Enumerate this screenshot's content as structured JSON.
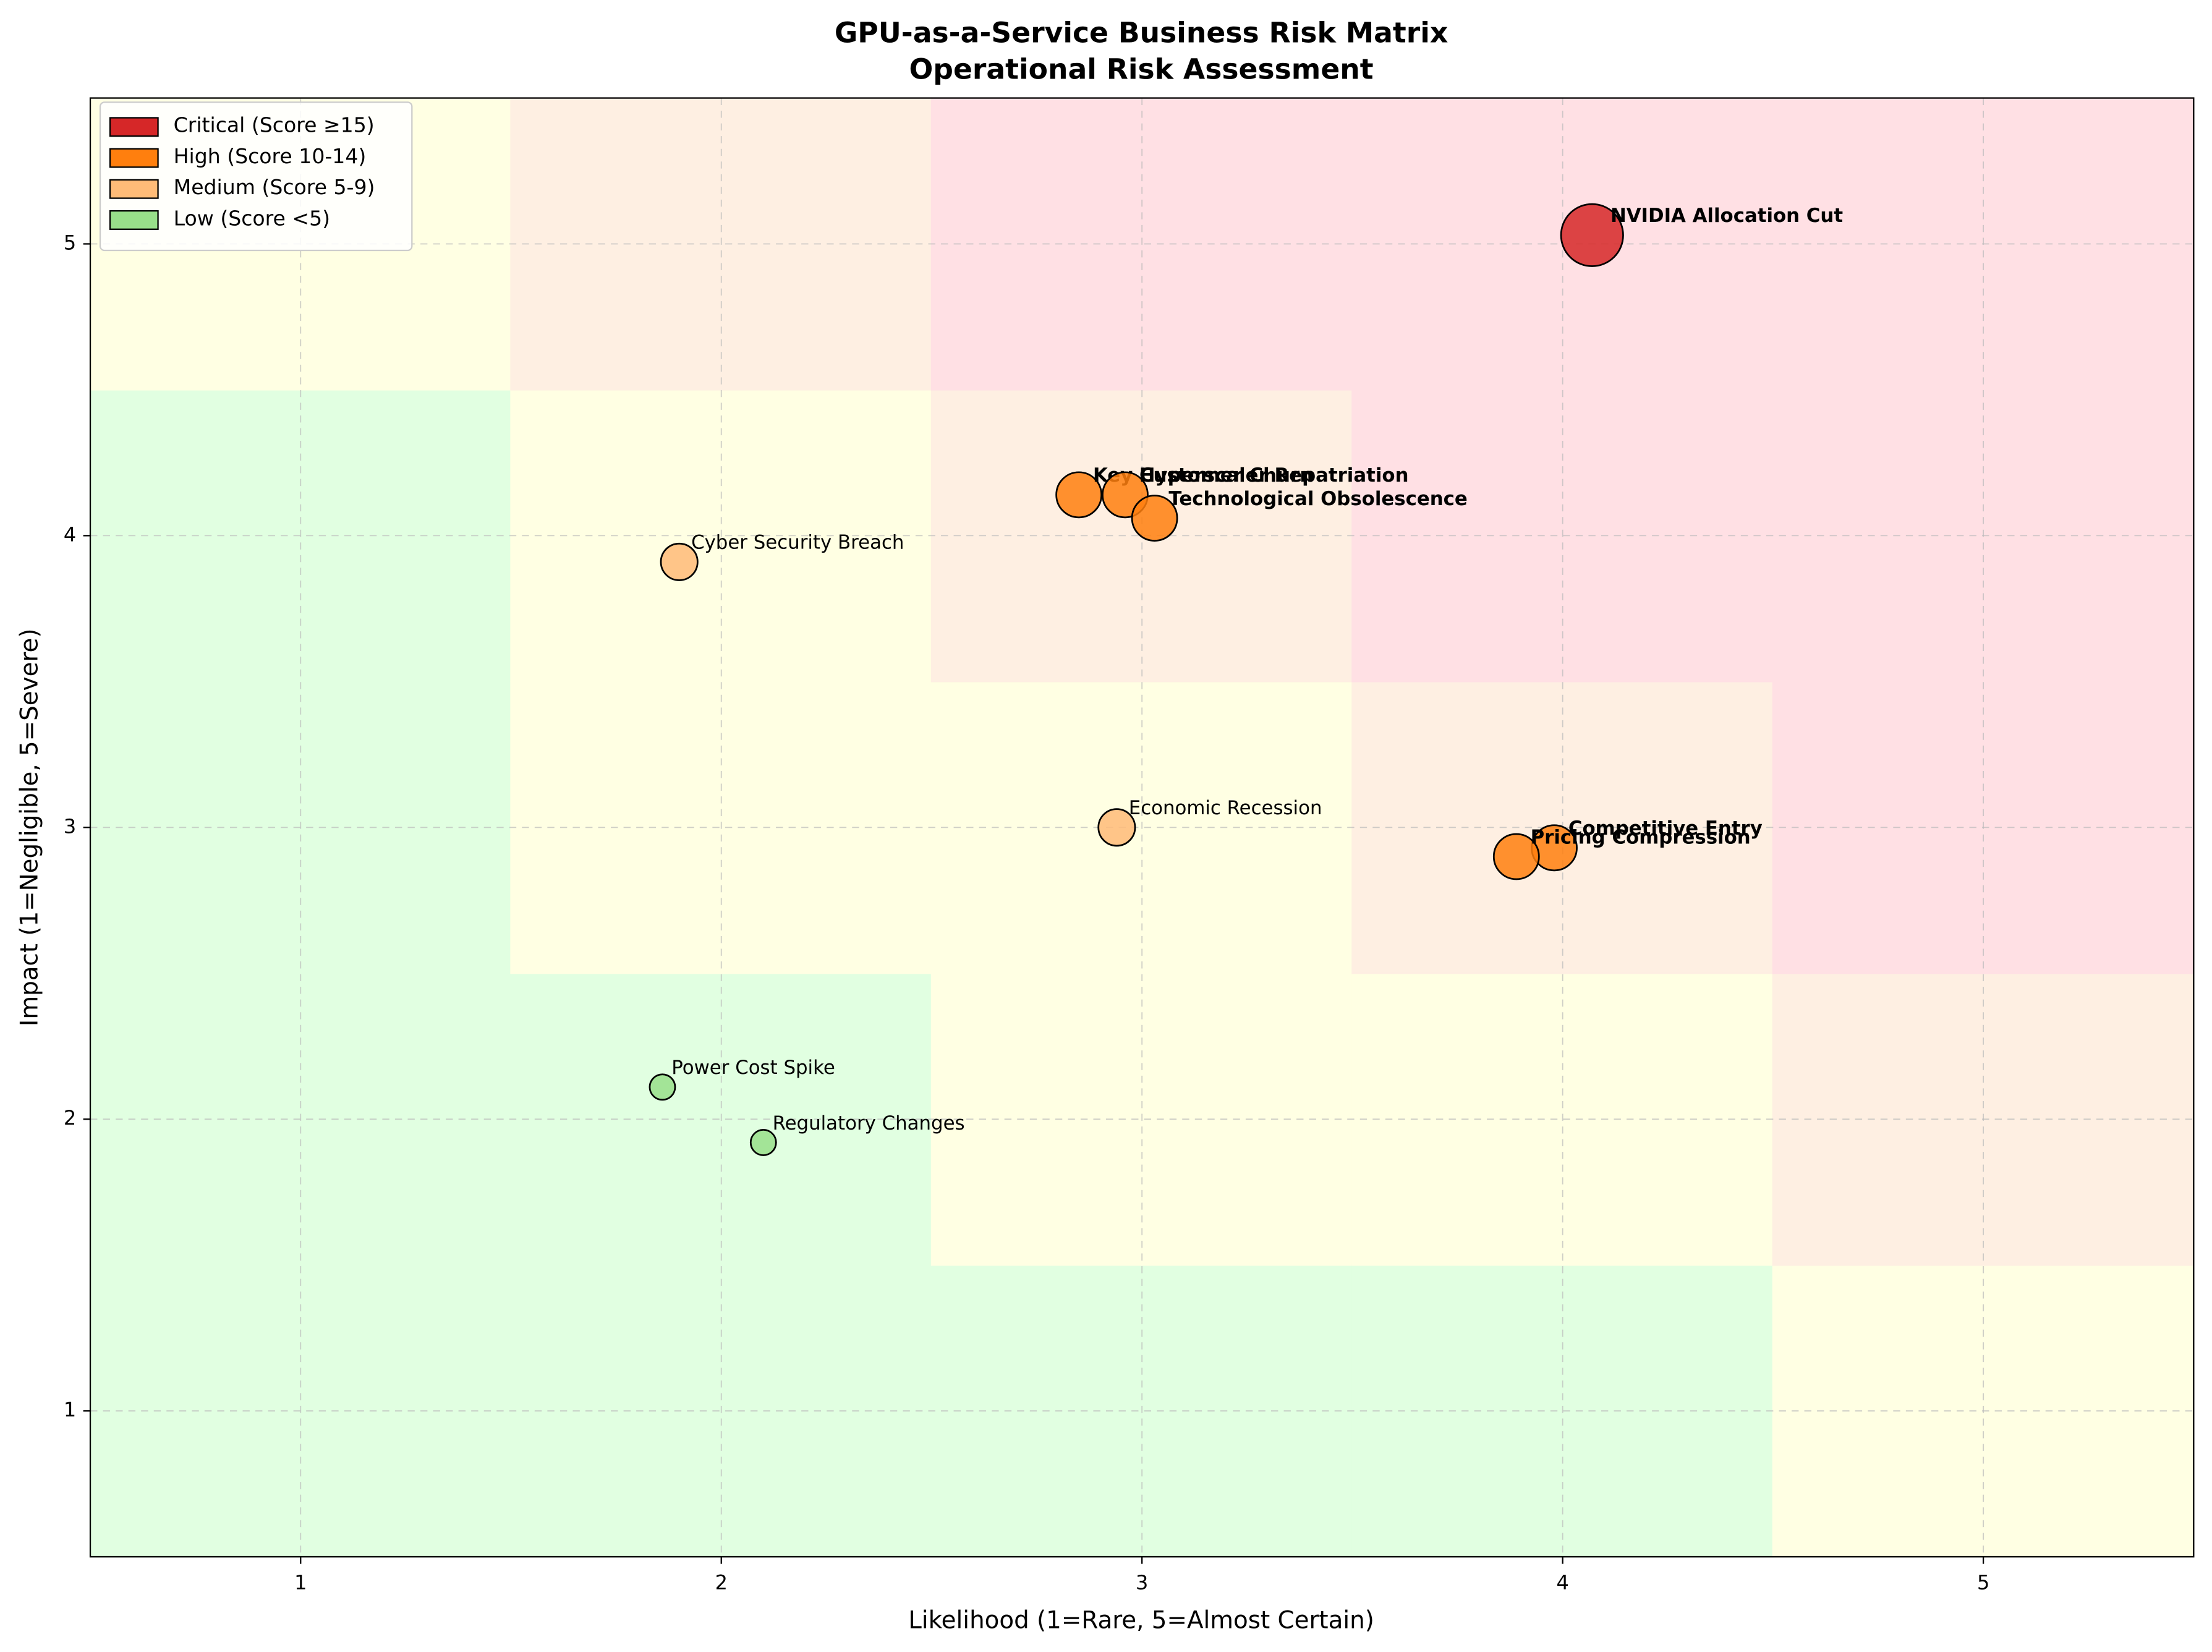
{
  "chart_data": {
    "type": "scatter",
    "title": "GPU-as-a-Service Business Risk Matrix",
    "subtitle": "Operational Risk Assessment",
    "xlabel": "Likelihood (1=Rare, 5=Almost Certain)",
    "ylabel": "Impact (1=Negligible, 5=Severe)",
    "xlim": [
      0.5,
      5.5
    ],
    "ylim": [
      0.5,
      5.5
    ],
    "xticks": [
      1,
      2,
      3,
      4,
      5
    ],
    "yticks": [
      1,
      2,
      3,
      4,
      5
    ],
    "grid": true,
    "legend": "upper left",
    "series": [
      {
        "name": "Critical (Score ≥15)",
        "color": "#d62728",
        "zone_color": "#ffe0e4",
        "min_score": 15,
        "bold": true,
        "size": 22,
        "x": [
          4.07
        ],
        "y": [
          5.03
        ],
        "labels": [
          "NVIDIA Allocation Cut"
        ]
      },
      {
        "name": "High (Score 10-14)",
        "color": "#ff7f0e",
        "zone_color": "#feefe2",
        "min_score": 10,
        "bold": true,
        "size": 16,
        "x": [
          2.85,
          2.96,
          3.03,
          3.98,
          3.89
        ],
        "y": [
          4.14,
          4.14,
          4.06,
          2.93,
          2.9
        ],
        "labels": [
          "Key Customer Churn",
          "Hyperscaler Repatriation",
          "Technological Obsolescence",
          "Competitive Entry",
          "Pricing Compression"
        ]
      },
      {
        "name": "Medium (Score 5-9)",
        "color": "#ffbb78",
        "zone_color": "#ffffe3",
        "min_score": 5,
        "bold": false,
        "size": 13,
        "x": [
          1.9,
          2.94
        ],
        "y": [
          3.91,
          3.0
        ],
        "labels": [
          "Cyber Security Breach",
          "Economic Recession"
        ]
      },
      {
        "name": "Low (Score <5)",
        "color": "#98df8a",
        "zone_color": "#e1ffe1",
        "bold": false,
        "size": 9,
        "x": [
          1.86,
          2.1
        ],
        "y": [
          2.11,
          1.92
        ],
        "labels": [
          "Power Cost Spike",
          "Regulatory Changes"
        ]
      }
    ]
  }
}
